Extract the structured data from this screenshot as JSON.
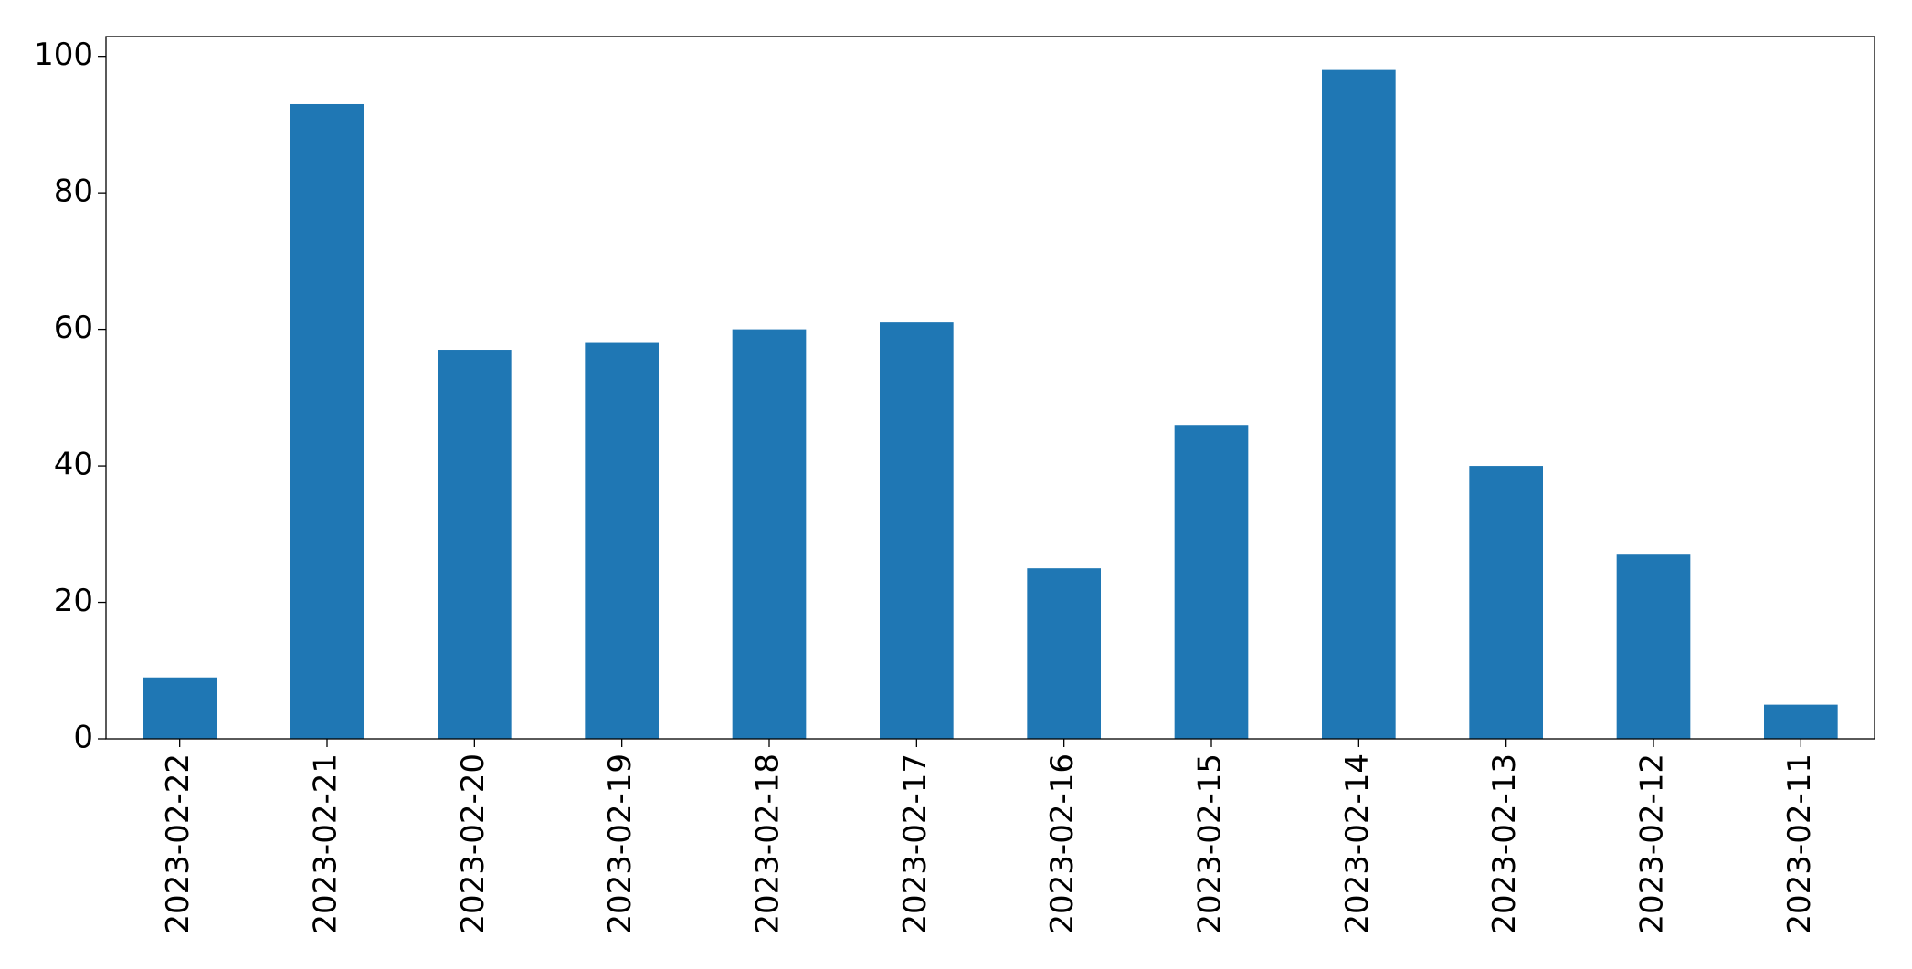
{
  "chart_data": {
    "type": "bar",
    "categories": [
      "2023-02-22",
      "2023-02-21",
      "2023-02-20",
      "2023-02-19",
      "2023-02-18",
      "2023-02-17",
      "2023-02-16",
      "2023-02-15",
      "2023-02-14",
      "2023-02-13",
      "2023-02-12",
      "2023-02-11"
    ],
    "values": [
      9,
      93,
      57,
      58,
      60,
      61,
      25,
      46,
      98,
      40,
      27,
      5
    ],
    "color": "#1f77b4",
    "ylim": [
      0,
      102.9
    ],
    "yticks": [
      0,
      20,
      40,
      60,
      80,
      100
    ],
    "grid": false
  }
}
